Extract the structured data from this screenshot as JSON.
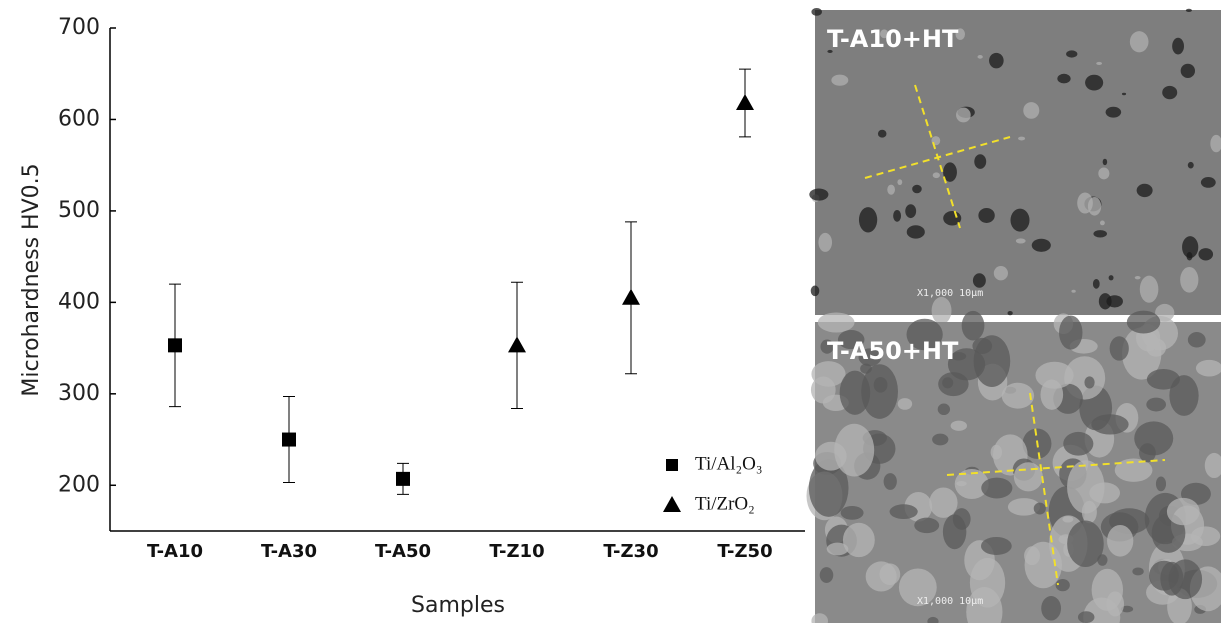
{
  "chart_data": {
    "type": "errorbar",
    "xlabel": "Samples",
    "ylabel": "Microhardness HV0.5",
    "categories": [
      "T-A10",
      "T-A30",
      "T-A50",
      "T-Z10",
      "T-Z30",
      "T-Z50"
    ],
    "series": [
      {
        "name": "Ti/Al₂O₃",
        "color": "#000000",
        "marker": "square",
        "values": [
          353,
          250,
          207,
          null,
          null,
          null
        ],
        "errors": [
          67,
          47,
          17,
          null,
          null,
          null
        ]
      },
      {
        "name": "Ti/ZrO₂",
        "color": "#000000",
        "marker": "triangle",
        "values": [
          null,
          null,
          null,
          353,
          405,
          618
        ],
        "errors": [
          null,
          null,
          null,
          69,
          83,
          37
        ]
      }
    ],
    "ylim": [
      150,
      700
    ],
    "yticks": [
      200,
      300,
      400,
      500,
      600,
      700
    ],
    "legend": "lower right"
  },
  "images": [
    {
      "label": "T-A10+HT",
      "scale_text": "X1,000  10µm"
    },
    {
      "label": "T-A50+HT",
      "scale_text": "X1,000  10µm"
    }
  ]
}
